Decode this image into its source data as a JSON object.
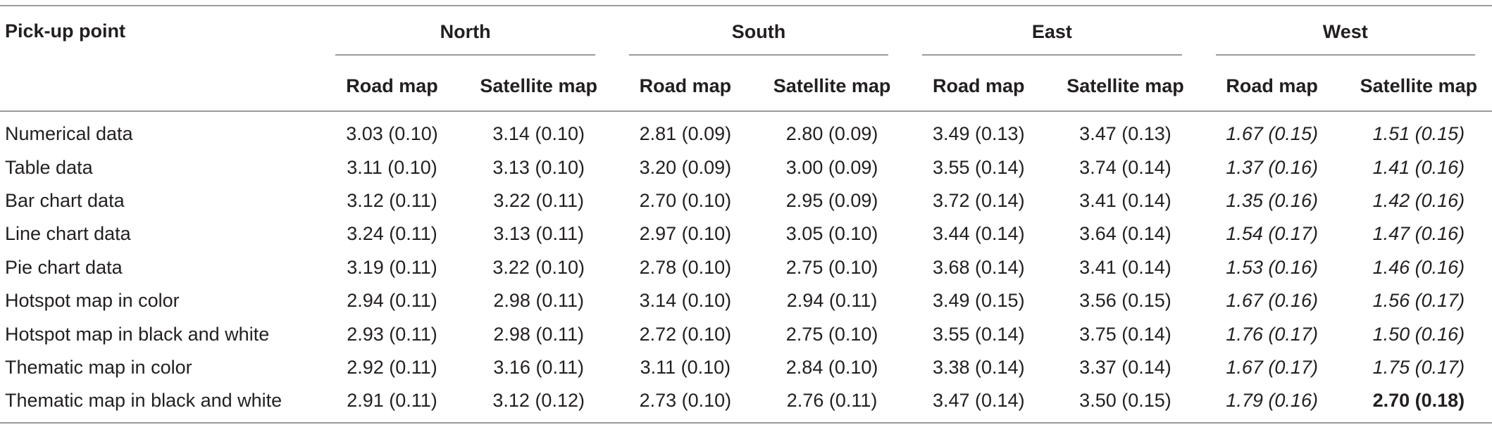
{
  "table": {
    "header": {
      "first": "Pick-up point",
      "groups": [
        "North",
        "South",
        "East",
        "West"
      ],
      "subheaders": [
        "Road map",
        "Satellite map",
        "Road map",
        "Satellite map",
        "Road map",
        "Satellite map",
        "Road map",
        "Satellite map"
      ]
    },
    "rows": [
      [
        "Numerical data",
        "3.03 (0.10)",
        "3.14 (0.10)",
        "2.81 (0.09)",
        "2.80 (0.09)",
        "3.49 (0.13)",
        "3.47 (0.13)",
        "1.67 (0.15)",
        "1.51 (0.15)"
      ],
      [
        "Table data",
        "3.11 (0.10)",
        "3.13 (0.10)",
        "3.20 (0.09)",
        "3.00 (0.09)",
        "3.55 (0.14)",
        "3.74 (0.14)",
        "1.37 (0.16)",
        "1.41 (0.16)"
      ],
      [
        "Bar chart data",
        "3.12 (0.11)",
        "3.22 (0.11)",
        "2.70 (0.10)",
        "2.95 (0.09)",
        "3.72 (0.14)",
        "3.41 (0.14)",
        "1.35 (0.16)",
        "1.42 (0.16)"
      ],
      [
        "Line chart data",
        "3.24 (0.11)",
        "3.13 (0.11)",
        "2.97 (0.10)",
        "3.05 (0.10)",
        "3.44 (0.14)",
        "3.64 (0.14)",
        "1.54 (0.17)",
        "1.47 (0.16)"
      ],
      [
        "Pie chart data",
        "3.19 (0.11)",
        "3.22 (0.10)",
        "2.78 (0.10)",
        "2.75 (0.10)",
        "3.68 (0.14)",
        "3.41 (0.14)",
        "1.53 (0.16)",
        "1.46 (0.16)"
      ],
      [
        "Hotspot map in color",
        "2.94 (0.11)",
        "2.98 (0.11)",
        "3.14 (0.10)",
        "2.94 (0.11)",
        "3.49 (0.15)",
        "3.56 (0.15)",
        "1.67 (0.16)",
        "1.56 (0.17)"
      ],
      [
        "Hotspot map in black and white",
        "2.93 (0.11)",
        "2.98 (0.11)",
        "2.72 (0.10)",
        "2.75 (0.10)",
        "3.55 (0.14)",
        "3.75 (0.14)",
        "1.76 (0.17)",
        "1.50 (0.16)"
      ],
      [
        "Thematic map in color",
        "2.92 (0.11)",
        "3.16 (0.11)",
        "3.11 (0.10)",
        "2.84 (0.10)",
        "3.38 (0.14)",
        "3.37 (0.14)",
        "1.67 (0.17)",
        "1.75 (0.17)"
      ],
      [
        "Thematic map in black and white",
        "2.91 (0.11)",
        "3.12 (0.12)",
        "2.73 (0.10)",
        "2.76 (0.11)",
        "3.47 (0.14)",
        "3.50 (0.15)",
        "1.79 (0.16)",
        "2.70 (0.18)"
      ]
    ]
  }
}
